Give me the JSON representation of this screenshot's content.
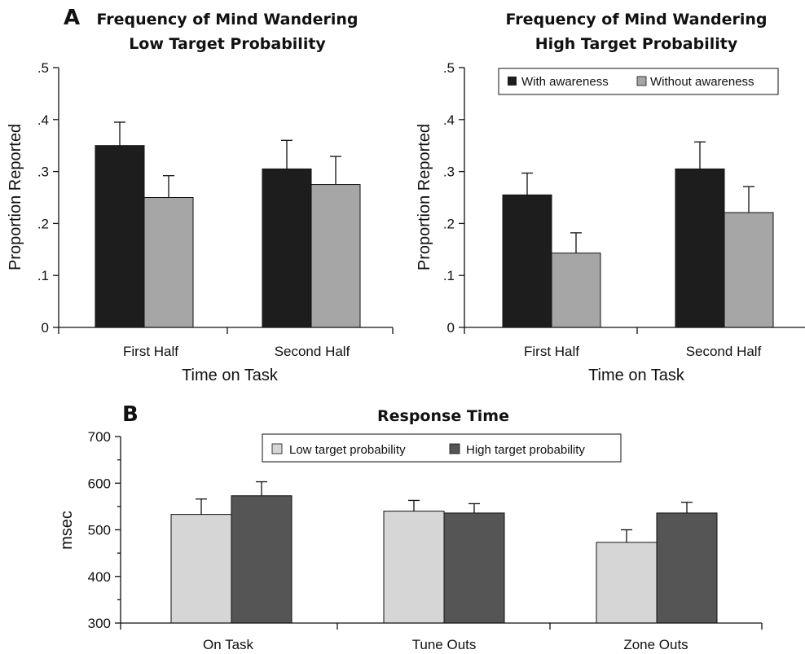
{
  "panel_labels": {
    "a": "A",
    "b": "B"
  },
  "colors": {
    "with_awareness": "#1d1d1d",
    "without_awareness": "#a6a6a6",
    "low_target": "#d6d6d6",
    "high_target": "#555555",
    "axis": "#111111"
  },
  "chart_data": [
    {
      "type": "bar",
      "title_lines": [
        "Frequency of Mind Wandering",
        "Low Target Probability"
      ],
      "categories": [
        "First Half",
        "Second Half"
      ],
      "xlabel": "Time on Task",
      "ylabel": "Proportion Reported",
      "ylim": [
        0,
        0.5
      ],
      "yticks": [
        0,
        0.1,
        0.2,
        0.3,
        0.4,
        0.5
      ],
      "ytick_labels": [
        "0",
        ".1",
        ".2",
        ".3",
        ".4",
        ".5"
      ],
      "series": [
        {
          "name": "With awareness",
          "values": [
            0.35,
            0.305
          ],
          "errors": [
            0.045,
            0.055
          ],
          "color": "#1d1d1d"
        },
        {
          "name": "Without awareness",
          "values": [
            0.25,
            0.275
          ],
          "errors": [
            0.042,
            0.054
          ],
          "color": "#a6a6a6"
        }
      ],
      "legend": false
    },
    {
      "type": "bar",
      "title_lines": [
        "Frequency of Mind Wandering",
        "High Target Probability"
      ],
      "categories": [
        "First Half",
        "Second Half"
      ],
      "xlabel": "Time on Task",
      "ylabel": "Proportion Reported",
      "ylim": [
        0,
        0.5
      ],
      "yticks": [
        0,
        0.1,
        0.2,
        0.3,
        0.4,
        0.5
      ],
      "ytick_labels": [
        "0",
        ".1",
        ".2",
        ".3",
        ".4",
        ".5"
      ],
      "series": [
        {
          "name": "With awareness",
          "values": [
            0.255,
            0.305
          ],
          "errors": [
            0.042,
            0.052
          ],
          "color": "#1d1d1d"
        },
        {
          "name": "Without awareness",
          "values": [
            0.143,
            0.221
          ],
          "errors": [
            0.039,
            0.05
          ],
          "color": "#a6a6a6"
        }
      ],
      "legend": true,
      "legend_position": "top"
    },
    {
      "type": "bar",
      "title": "Response Time",
      "categories": [
        "On Task",
        "Tune Outs",
        "Zone Outs"
      ],
      "ylabel": "msec",
      "ylim": [
        300,
        700
      ],
      "yticks": [
        300,
        400,
        500,
        600,
        700
      ],
      "ytick_labels": [
        "300",
        "400",
        "500",
        "600",
        "700"
      ],
      "series": [
        {
          "name": "Low target probability",
          "values": [
            533,
            540,
            473
          ],
          "errors": [
            33,
            23,
            27
          ],
          "color": "#d6d6d6"
        },
        {
          "name": "High target probability",
          "values": [
            573,
            536,
            536
          ],
          "errors": [
            30,
            20,
            23
          ],
          "color": "#555555"
        }
      ],
      "legend": true,
      "legend_position": "top"
    }
  ]
}
